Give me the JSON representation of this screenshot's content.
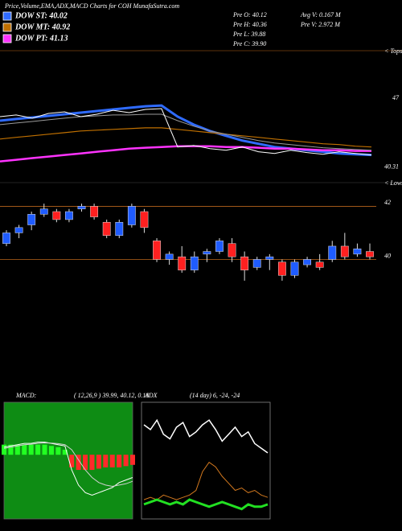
{
  "chart_data": [
    {
      "type": "line",
      "title": "Price,Volume,EMA,ADX,MACD Charts for COH MunafaSutra.com",
      "notes": [
        "Pre  O: 40.12",
        "Pre  H: 40.36",
        "Pre  L: 39.88",
        "Pre  C: 39.90",
        "Avg V: 0.167 M",
        "Pre  V: 2.972 M"
      ],
      "annotation": "< Tops",
      "categories": [
        null,
        null,
        null,
        null,
        null,
        null,
        null,
        null,
        null,
        null,
        null,
        null,
        null,
        null,
        null,
        null,
        null,
        null,
        null,
        null,
        null,
        null,
        null,
        null
      ],
      "ylim": [
        39.8,
        51.4
      ],
      "yticks": [
        47,
        40.31
      ],
      "grid": false,
      "series": [
        {
          "name": "DOW ST: 40.02",
          "color": "#2f6bff",
          "line_width": 3,
          "values": [
            44.82,
            44.98,
            45.13,
            45.29,
            45.44,
            45.6,
            45.76,
            45.91,
            46.07,
            46.22,
            46.3,
            45.21,
            44.43,
            43.81,
            43.34,
            42.88,
            42.57,
            42.25,
            42.1,
            41.94,
            41.79,
            41.63,
            41.55,
            41.48
          ]
        },
        {
          "name": "DOW MT: 40.92",
          "color": "#c07000",
          "line_width": 1.2,
          "values": [
            43.03,
            43.19,
            43.34,
            43.5,
            43.65,
            43.81,
            43.89,
            43.97,
            44.04,
            44.12,
            44.12,
            43.97,
            43.81,
            43.65,
            43.5,
            43.34,
            43.19,
            43.03,
            42.88,
            42.72,
            42.57,
            42.49,
            42.33,
            42.25
          ]
        },
        {
          "name": "DOW PT: 41.13",
          "color": "#ff33ff",
          "line_width": 2.5,
          "values": [
            40.85,
            41.01,
            41.17,
            41.32,
            41.48,
            41.63,
            41.79,
            41.94,
            42.1,
            42.18,
            42.25,
            42.33,
            42.33,
            42.33,
            42.25,
            42.25,
            42.18,
            42.1,
            42.1,
            42.02,
            41.94,
            41.94,
            41.87,
            41.87
          ]
        },
        {
          "color": "#9a9a9a",
          "line_width": 1,
          "values": [
            44.43,
            44.59,
            44.74,
            44.9,
            45.06,
            45.21,
            45.29,
            45.37,
            45.37,
            45.44,
            45.44,
            44.82,
            44.28,
            43.81,
            43.5,
            43.19,
            42.88,
            42.64,
            42.49,
            42.33,
            42.18,
            42.1,
            42.02,
            41.94
          ]
        },
        {
          "color": "#ffffff",
          "line_width": 1,
          "values": [
            45.21,
            45.37,
            45.06,
            45.52,
            45.68,
            45.21,
            45.44,
            45.83,
            45.6,
            45.91,
            45.99,
            42.25,
            42.41,
            42.1,
            41.94,
            42.25,
            41.79,
            41.63,
            41.94,
            41.71,
            41.55,
            41.79,
            41.63,
            41.48
          ]
        }
      ]
    },
    {
      "type": "candlestick",
      "annotation": "< Lows",
      "categories": [
        null,
        null,
        null,
        null,
        null,
        null,
        null,
        null,
        null,
        null,
        null,
        null,
        null,
        null,
        null,
        null,
        null,
        null,
        null,
        null,
        null,
        null,
        null,
        null,
        null,
        null,
        null,
        null,
        null,
        null
      ],
      "ylim": [
        38.5,
        42.8
      ],
      "yticks": [
        42,
        40
      ],
      "grid": true,
      "grid_color": "#b8651b",
      "up_color": "#1f5cff",
      "down_color": "#ff2020",
      "open": [
        40.6,
        41.0,
        41.3,
        41.7,
        41.8,
        41.5,
        41.9,
        42.0,
        41.4,
        40.9,
        41.3,
        41.8,
        40.7,
        40.0,
        40.1,
        39.6,
        40.2,
        40.3,
        40.6,
        40.1,
        39.7,
        40.0,
        39.9,
        39.4,
        39.8,
        39.9,
        40.0,
        40.5,
        40.2,
        40.3
      ],
      "high": [
        41.1,
        41.3,
        41.8,
        42.1,
        41.9,
        41.9,
        42.1,
        42.1,
        41.5,
        41.5,
        42.1,
        41.9,
        40.8,
        40.3,
        40.5,
        40.3,
        40.4,
        40.8,
        40.8,
        40.3,
        40.1,
        40.2,
        40.0,
        40.0,
        40.1,
        40.2,
        40.7,
        41.0,
        40.6,
        40.6
      ],
      "low": [
        40.5,
        40.8,
        41.1,
        41.6,
        41.4,
        41.4,
        41.8,
        41.5,
        40.8,
        40.8,
        41.2,
        41.0,
        39.9,
        39.8,
        39.5,
        39.5,
        39.9,
        40.2,
        39.9,
        39.2,
        39.6,
        39.6,
        39.2,
        39.3,
        39.7,
        39.6,
        39.9,
        40.0,
        40.1,
        40.0
      ],
      "close": [
        41.0,
        41.2,
        41.7,
        41.9,
        41.5,
        41.8,
        42.0,
        41.6,
        40.9,
        41.4,
        42.0,
        41.2,
        40.0,
        40.2,
        39.6,
        40.1,
        40.3,
        40.7,
        40.1,
        39.6,
        40.0,
        40.1,
        39.4,
        39.9,
        40.0,
        39.7,
        40.5,
        40.1,
        40.4,
        40.1
      ]
    },
    {
      "type": "macd",
      "title": "MACD:",
      "subtitle": "( 12,26,9 ) 39.99, 40.12, 0.18",
      "background": "#0e8c14",
      "categories": [
        null,
        null,
        null,
        null,
        null,
        null,
        null,
        null,
        null,
        null,
        null,
        null,
        null,
        null,
        null,
        null,
        null,
        null,
        null,
        null
      ],
      "series": [
        {
          "color": "#ffffff",
          "values": [
            0.3,
            0.35,
            0.4,
            0.45,
            0.45,
            0.5,
            0.5,
            0.45,
            0.4,
            0.35,
            -0.6,
            -1.2,
            -1.5,
            -1.6,
            -1.5,
            -1.4,
            -1.3,
            -1.1,
            -1.0,
            -0.9
          ]
        },
        {
          "color": "#d0d0d0",
          "values": [
            0.25,
            0.3,
            0.35,
            0.4,
            0.42,
            0.45,
            0.47,
            0.46,
            0.44,
            0.4,
            0.2,
            -0.2,
            -0.6,
            -0.9,
            -1.1,
            -1.2,
            -1.25,
            -1.2,
            -1.15,
            -1.05
          ]
        }
      ],
      "histogram": [
        0.4,
        0.4,
        0.4,
        0.4,
        0.4,
        0.4,
        0.4,
        0.35,
        0.3,
        0.2,
        -0.5,
        -0.6,
        -0.6,
        -0.6,
        -0.55,
        -0.5,
        -0.5,
        -0.5,
        -0.45,
        -0.4
      ],
      "hist_up_color": "#22ff22",
      "hist_down_color": "#ff2a2a"
    },
    {
      "type": "adx",
      "title": "ADX",
      "subtitle": "(14 day) 6, -24, -24",
      "background": "#000000",
      "categories": [
        null,
        null,
        null,
        null,
        null,
        null,
        null,
        null,
        null,
        null,
        null,
        null,
        null,
        null,
        null,
        null,
        null,
        null,
        null,
        null
      ],
      "series": [
        {
          "color": "#ffffff",
          "line_width": 1.5,
          "values": [
            40,
            38,
            42,
            36,
            34,
            39,
            41,
            35,
            37,
            40,
            42,
            38,
            33,
            36,
            39,
            35,
            37,
            32,
            30,
            28
          ]
        },
        {
          "color": "#d2781e",
          "line_width": 1,
          "values": [
            8,
            9,
            8,
            10,
            9,
            8,
            9,
            10,
            12,
            20,
            24,
            22,
            18,
            15,
            12,
            13,
            11,
            12,
            10,
            9
          ]
        },
        {
          "color": "#22e022",
          "line_width": 3,
          "values": [
            6,
            7,
            8,
            7,
            6,
            7,
            6,
            8,
            7,
            6,
            5,
            6,
            7,
            6,
            5,
            4,
            6,
            5,
            5,
            6
          ]
        }
      ]
    }
  ]
}
